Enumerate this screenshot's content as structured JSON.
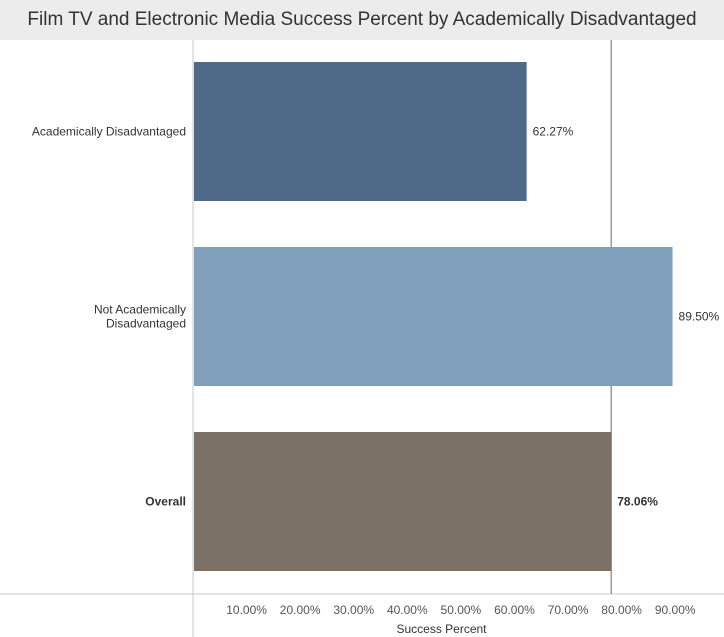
{
  "chart_data": {
    "type": "bar",
    "orientation": "horizontal",
    "title": "Film TV and Electronic Media Success Percent by Academically Disadvantaged",
    "xlabel": "Success Percent",
    "ylabel": "",
    "xlim": [
      0,
      0.95
    ],
    "ticks": [
      {
        "value": 0.1,
        "label": "10.00%"
      },
      {
        "value": 0.2,
        "label": "20.00%"
      },
      {
        "value": 0.3,
        "label": "30.00%"
      },
      {
        "value": 0.4,
        "label": "40.00%"
      },
      {
        "value": 0.5,
        "label": "50.00%"
      },
      {
        "value": 0.6,
        "label": "60.00%"
      },
      {
        "value": 0.7,
        "label": "70.00%"
      },
      {
        "value": 0.8,
        "label": "80.00%"
      },
      {
        "value": 0.9,
        "label": "90.00%"
      }
    ],
    "categories": [
      "Academically Disadvantaged",
      "Not Academically Disadvantaged",
      "Overall"
    ],
    "values": [
      0.6227,
      0.895,
      0.7806
    ],
    "value_labels": [
      "62.27%",
      "89.50%",
      "78.06%"
    ],
    "colors": [
      "#4f6a89",
      "#7f9fba",
      "#7b7166"
    ],
    "bold": [
      false,
      false,
      true
    ],
    "reference_line": 0.7806,
    "grid": false
  }
}
